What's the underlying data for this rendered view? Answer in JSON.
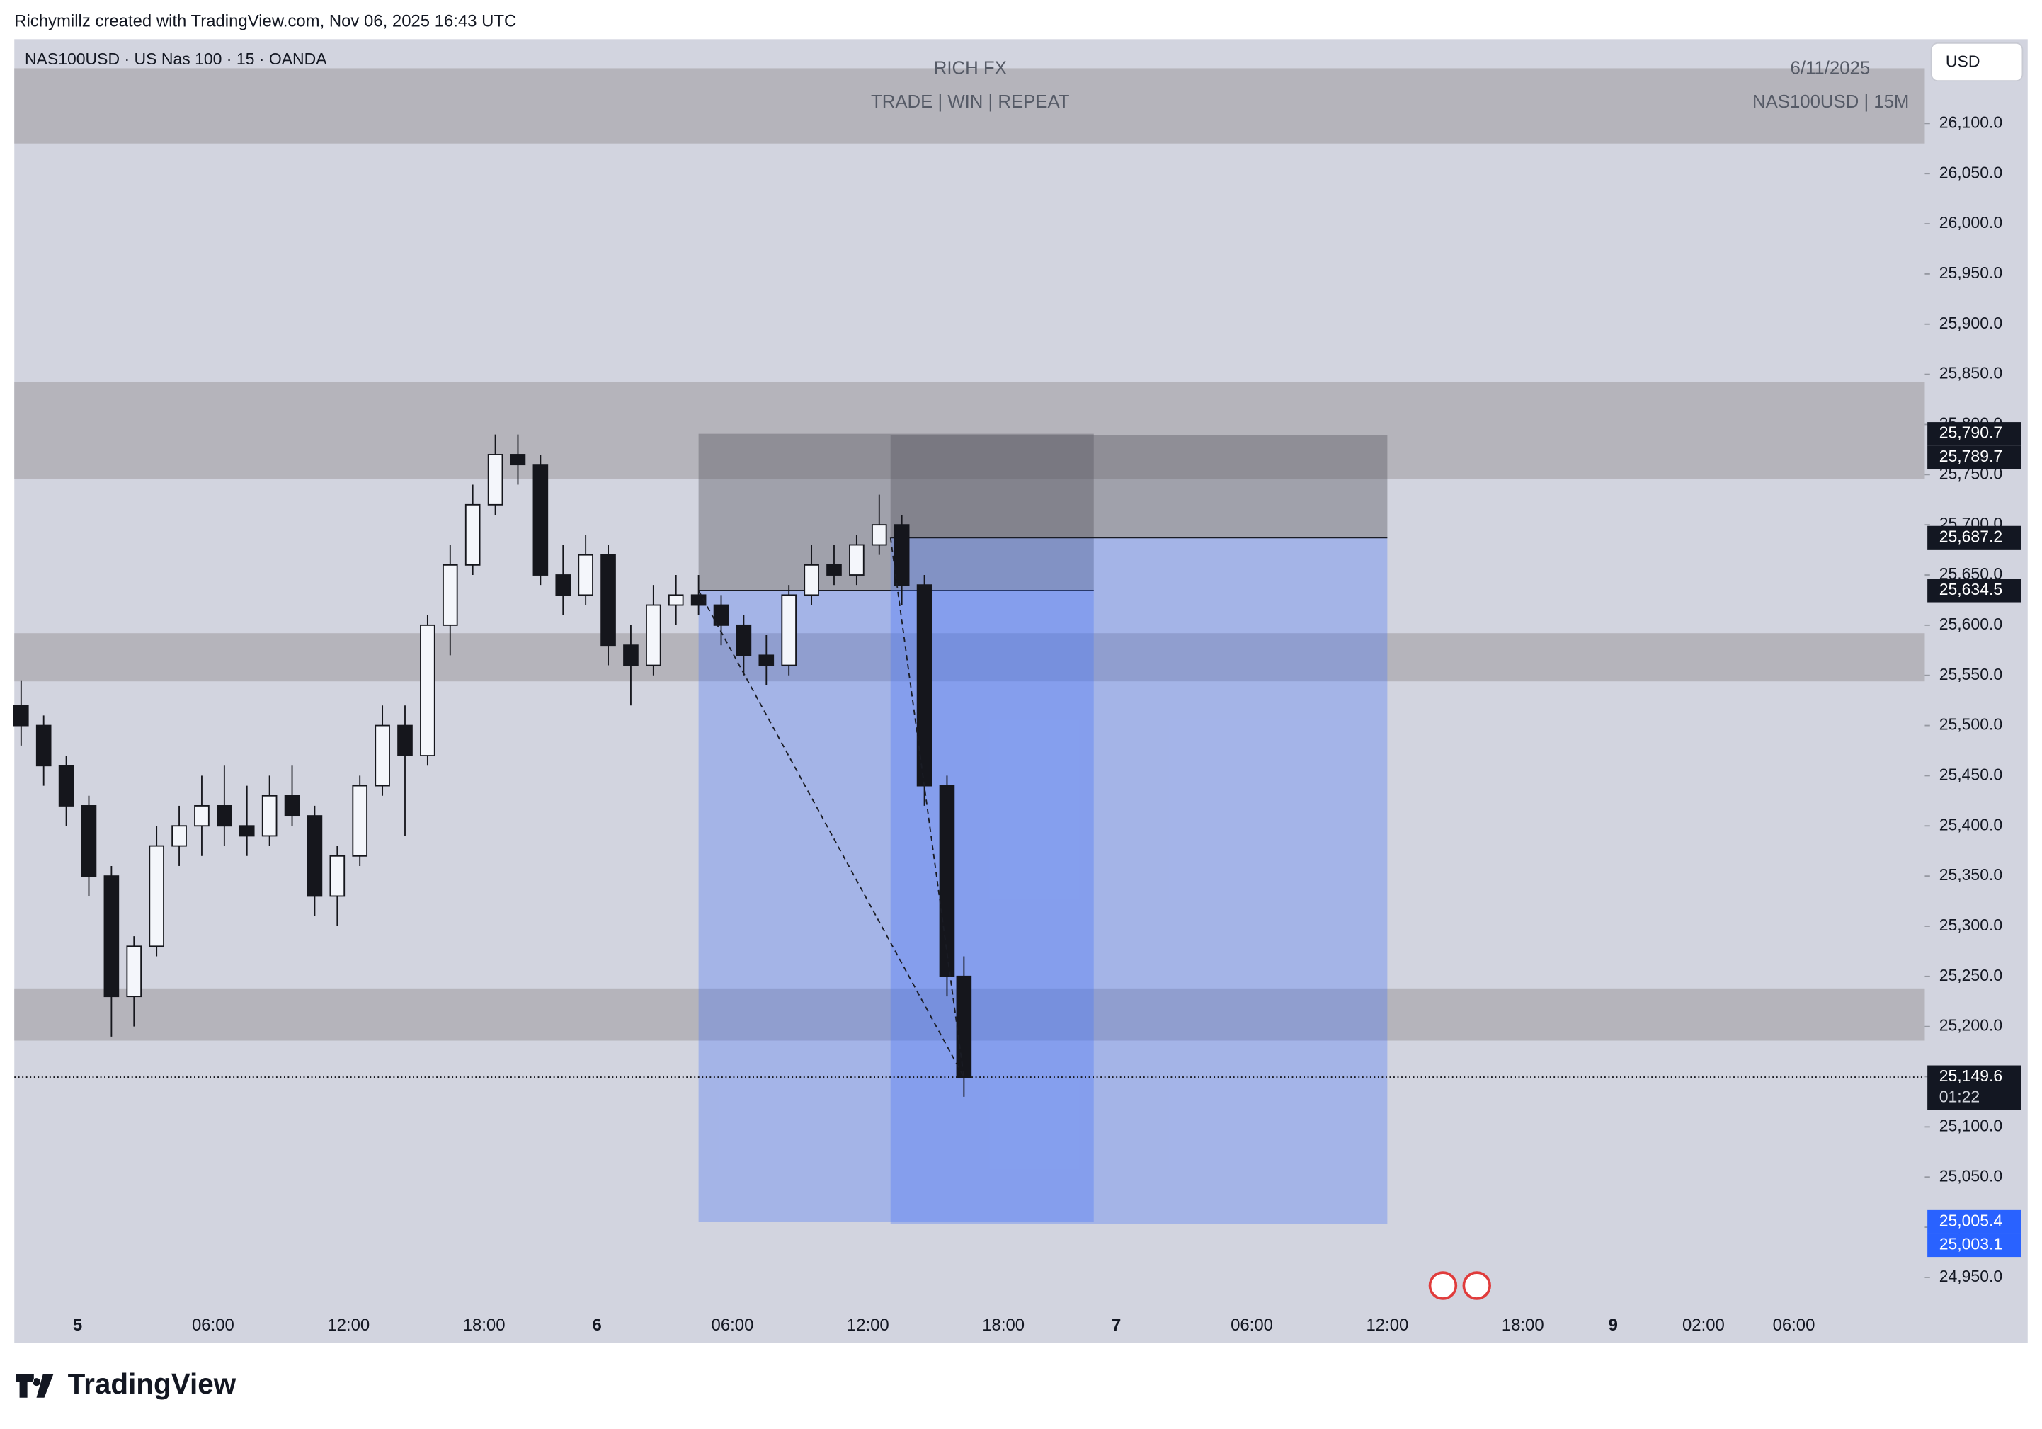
{
  "header": "Richymillz created with TradingView.com, Nov 06, 2025 16:43 UTC",
  "footer_logo": "TradingView",
  "chart_data": {
    "type": "candlestick",
    "title": "NAS100USD · US Nas 100 · 15 · OANDA",
    "annotations": [
      "RICH FX",
      "TRADE | WIN | REPEAT",
      "6/11/2025",
      "NAS100USD | 15M"
    ],
    "currency": "USD",
    "up_color": "#f4f6fb",
    "down_color": "#15161c",
    "x": [
      -2.5,
      -1.5,
      -0.5,
      0.5,
      1.5,
      2.5,
      3.5,
      4.5,
      5.5,
      6.5,
      7.5,
      8.5,
      9.5,
      10.5,
      11.5,
      12.5,
      13.5,
      14.5,
      15.5,
      16.5,
      17.5,
      18.5,
      19.5,
      20.5,
      21.5,
      22.5,
      23.5,
      24.5,
      25.5,
      26.5,
      27.5,
      28.5,
      29.5,
      30.5,
      31.5,
      32.5,
      33.5,
      34.5,
      35.5,
      36.5,
      37.5,
      38.5,
      39.25
    ],
    "open": [
      25520,
      25500,
      25460,
      25420,
      25350,
      25230,
      25280,
      25380,
      25400,
      25420,
      25400,
      25390,
      25430,
      25410,
      25330,
      25370,
      25440,
      25500,
      25470,
      25600,
      25660,
      25720,
      25770,
      25760,
      25650,
      25630,
      25670,
      25580,
      25560,
      25620,
      25630,
      25620,
      25600,
      25570,
      25560,
      25630,
      25660,
      25650,
      25680,
      25700,
      25640,
      25440,
      25250
    ],
    "high": [
      25545,
      25510,
      25470,
      25430,
      25360,
      25290,
      25400,
      25420,
      25450,
      25460,
      25440,
      25450,
      25460,
      25420,
      25380,
      25450,
      25520,
      25520,
      25610,
      25680,
      25740,
      25790,
      25790,
      25770,
      25680,
      25690,
      25680,
      25600,
      25640,
      25650,
      25650,
      25630,
      25610,
      25590,
      25640,
      25680,
      25680,
      25690,
      25730,
      25710,
      25650,
      25450,
      25270
    ],
    "low": [
      25480,
      25440,
      25400,
      25330,
      25190,
      25200,
      25270,
      25360,
      25370,
      25380,
      25370,
      25380,
      25400,
      25310,
      25300,
      25360,
      25430,
      25390,
      25460,
      25570,
      25650,
      25710,
      25740,
      25640,
      25610,
      25620,
      25560,
      25520,
      25550,
      25600,
      25610,
      25580,
      25550,
      25540,
      25550,
      25620,
      25640,
      25640,
      25670,
      25620,
      25420,
      25230,
      25130
    ],
    "close": [
      25500,
      25460,
      25420,
      25350,
      25230,
      25280,
      25380,
      25400,
      25420,
      25400,
      25390,
      25430,
      25410,
      25330,
      25370,
      25440,
      25500,
      25470,
      25600,
      25660,
      25720,
      25770,
      25760,
      25650,
      25630,
      25670,
      25580,
      25560,
      25620,
      25630,
      25620,
      25600,
      25570,
      25560,
      25630,
      25660,
      25650,
      25680,
      25700,
      25640,
      25440,
      25250,
      25149.6
    ],
    "xlim": [
      -2.8,
      81.8
    ],
    "xticks": [
      {
        "value": 0,
        "label": "5"
      },
      {
        "value": 6,
        "label": "06:00"
      },
      {
        "value": 12,
        "label": "12:00"
      },
      {
        "value": 18,
        "label": "18:00"
      },
      {
        "value": 23,
        "label": "6"
      },
      {
        "value": 29,
        "label": "06:00"
      },
      {
        "value": 35,
        "label": "12:00"
      },
      {
        "value": 41,
        "label": "18:00"
      },
      {
        "value": 46,
        "label": "7"
      },
      {
        "value": 52,
        "label": "06:00"
      },
      {
        "value": 58,
        "label": "12:00"
      },
      {
        "value": 64,
        "label": "18:00"
      },
      {
        "value": 68,
        "label": "9"
      },
      {
        "value": 72,
        "label": "02:00"
      },
      {
        "value": 76,
        "label": "06:00"
      }
    ],
    "ylim": [
      24886,
      26184
    ],
    "yticks": [
      {
        "value": 24950,
        "label": "24,950.0"
      },
      {
        "value": 25000,
        "label": "25,000.0"
      },
      {
        "value": 25050,
        "label": "25,050.0"
      },
      {
        "value": 25100,
        "label": "25,100.0"
      },
      {
        "value": 25150,
        "label": "25,150.0"
      },
      {
        "value": 25200,
        "label": "25,200.0"
      },
      {
        "value": 25250,
        "label": "25,250.0"
      },
      {
        "value": 25300,
        "label": "25,300.0"
      },
      {
        "value": 25350,
        "label": "25,350.0"
      },
      {
        "value": 25400,
        "label": "25,400.0"
      },
      {
        "value": 25450,
        "label": "25,450.0"
      },
      {
        "value": 25500,
        "label": "25,500.0"
      },
      {
        "value": 25550,
        "label": "25,550.0"
      },
      {
        "value": 25600,
        "label": "25,600.0"
      },
      {
        "value": 25650,
        "label": "25,650.0"
      },
      {
        "value": 25700,
        "label": "25,700.0"
      },
      {
        "value": 25750,
        "label": "25,750.0"
      },
      {
        "value": 25800,
        "label": "25,800.0"
      },
      {
        "value": 25850,
        "label": "25,850.0"
      },
      {
        "value": 25900,
        "label": "25,900.0"
      },
      {
        "value": 25950,
        "label": "25,950.0"
      },
      {
        "value": 26000,
        "label": "26,000.0"
      },
      {
        "value": 26050,
        "label": "26,050.0"
      },
      {
        "value": 26100,
        "label": "26,100.0"
      }
    ],
    "zones": [
      {
        "low": 26080,
        "high": 26155
      },
      {
        "low": 25746,
        "high": 25842
      },
      {
        "low": 25544,
        "high": 25592
      },
      {
        "low": 25186,
        "high": 25238
      }
    ],
    "positions": [
      {
        "x_start": 27.5,
        "x_end": 45,
        "entry": {
          "value": 25634.5,
          "label": "25,634.5"
        },
        "stop": {
          "value": 25790.7,
          "label": "25,790.7"
        },
        "target": {
          "value": 25005.4,
          "label": "25,005.4"
        }
      },
      {
        "x_start": 36,
        "x_end": 58,
        "entry": {
          "value": 25687.2,
          "label": "25,687.2"
        },
        "stop": {
          "value": 25789.7,
          "label": "25,789.7"
        },
        "target": {
          "value": 25003.1,
          "label": "25,003.1"
        }
      }
    ],
    "last_price": {
      "value": 25149.6,
      "label": "25,149.6",
      "countdown": "01:22"
    }
  }
}
